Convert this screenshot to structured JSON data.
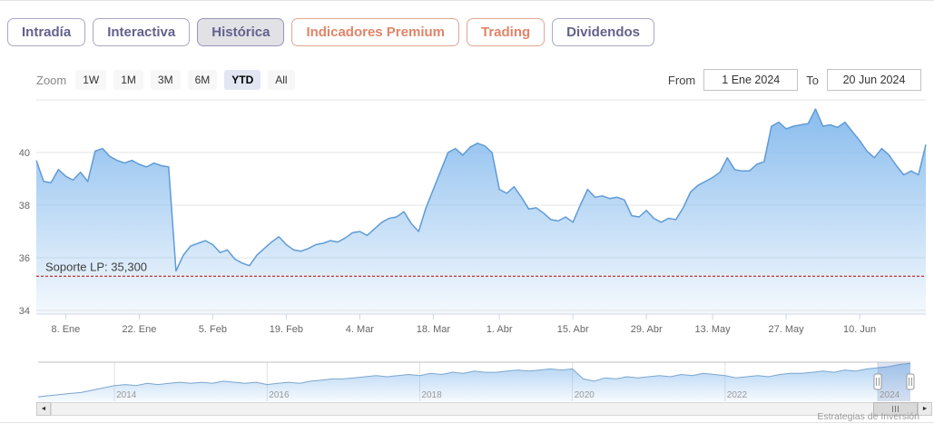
{
  "tabs": [
    {
      "label": "Intradía",
      "state": "normal"
    },
    {
      "label": "Interactiva",
      "state": "normal"
    },
    {
      "label": "Histórica",
      "state": "active"
    },
    {
      "label": "Indicadores Premium",
      "state": "premium"
    },
    {
      "label": "Trading",
      "state": "premium"
    },
    {
      "label": "Dividendos",
      "state": "normal"
    }
  ],
  "controls": {
    "zoom_label": "Zoom",
    "zoom_buttons": [
      "1W",
      "1M",
      "3M",
      "6M",
      "YTD",
      "All"
    ],
    "zoom_active": "YTD",
    "from_label": "From",
    "from_value": "1 Ene 2024",
    "to_label": "To",
    "to_value": "20 Jun 2024"
  },
  "chart_data": {
    "type": "area",
    "title": "",
    "xlabel": "",
    "ylabel": "",
    "grid": "horizontal",
    "yticks": [
      34,
      36,
      38,
      40
    ],
    "ylim": [
      33.86,
      42.0
    ],
    "x_tick_labels": [
      "8. Ene",
      "22. Ene",
      "5. Feb",
      "19. Feb",
      "4. Mar",
      "18. Mar",
      "1. Abr",
      "15. Abr",
      "29. Abr",
      "13. May",
      "27. May",
      "10. Jun"
    ],
    "x_tick_indices": [
      4,
      14,
      24,
      34,
      44,
      54,
      63,
      73,
      83,
      92,
      102,
      112
    ],
    "values": [
      39.7,
      38.9,
      38.85,
      39.35,
      39.1,
      38.95,
      39.25,
      38.9,
      40.05,
      40.15,
      39.85,
      39.7,
      39.6,
      39.7,
      39.55,
      39.45,
      39.6,
      39.5,
      39.45,
      35.5,
      36.1,
      36.45,
      36.55,
      36.65,
      36.5,
      36.2,
      36.3,
      35.95,
      35.8,
      35.7,
      36.1,
      36.35,
      36.6,
      36.8,
      36.5,
      36.3,
      36.25,
      36.35,
      36.5,
      36.55,
      36.65,
      36.6,
      36.75,
      36.95,
      37.0,
      36.85,
      37.1,
      37.35,
      37.5,
      37.55,
      37.75,
      37.3,
      37.0,
      37.9,
      38.6,
      39.3,
      40.0,
      40.15,
      39.9,
      40.2,
      40.35,
      40.25,
      40.0,
      38.6,
      38.45,
      38.7,
      38.3,
      37.85,
      37.9,
      37.7,
      37.45,
      37.4,
      37.55,
      37.35,
      38.0,
      38.6,
      38.3,
      38.35,
      38.25,
      38.3,
      38.2,
      37.6,
      37.55,
      37.8,
      37.5,
      37.35,
      37.5,
      37.45,
      37.9,
      38.5,
      38.75,
      38.9,
      39.05,
      39.25,
      39.8,
      39.35,
      39.3,
      39.3,
      39.55,
      39.65,
      41.0,
      41.15,
      40.9,
      41.0,
      41.05,
      41.1,
      41.65,
      41.0,
      41.05,
      40.95,
      41.15,
      40.8,
      40.45,
      40.05,
      39.8,
      40.15,
      39.9,
      39.5,
      39.15,
      39.3,
      39.15,
      40.3
    ],
    "annotation": {
      "label": "Soporte LP: 35,300",
      "value": 35.3,
      "color": "#c00000",
      "style": "dashed"
    }
  },
  "navigator": {
    "chart_data": {
      "type": "area",
      "ylim": [
        8,
        43
      ],
      "year_labels": [
        "2014",
        "2016",
        "2018",
        "2020",
        "2022",
        "2024"
      ],
      "year_indices": [
        7,
        21,
        35,
        49,
        63,
        77
      ],
      "values": [
        12,
        13,
        14,
        15,
        16,
        18,
        20,
        22,
        23,
        22,
        24,
        23,
        24,
        25,
        24,
        25,
        24,
        26,
        25,
        24,
        25,
        23,
        24,
        25,
        24,
        26,
        27,
        28,
        28,
        29,
        30,
        31,
        30,
        31,
        32,
        31,
        33,
        32,
        34,
        33,
        35,
        34,
        34,
        35,
        36,
        35,
        36,
        37,
        36,
        37,
        28,
        26,
        29,
        28,
        30,
        29,
        30,
        31,
        30,
        32,
        31,
        33,
        32,
        31,
        29,
        30,
        31,
        30,
        32,
        33,
        33,
        34,
        35,
        34,
        36,
        35,
        37,
        38,
        39,
        41,
        42
      ]
    },
    "selected": {
      "from_index": 77
    }
  },
  "icons": {
    "scrollbar_left_arrow": "◄",
    "scrollbar_right_arrow": "►"
  },
  "credits": "Estrategias de Inversión",
  "colors": {
    "series_line": "#5f9bd6",
    "series_fill": "#7cb5ec",
    "support_red": "#c00000",
    "premium_accent": "#e08468",
    "tab_text": "#62628c",
    "active_zoom_bg": "#e2e6f3",
    "mask_fill": "rgba(102,133,194,0.22)"
  }
}
